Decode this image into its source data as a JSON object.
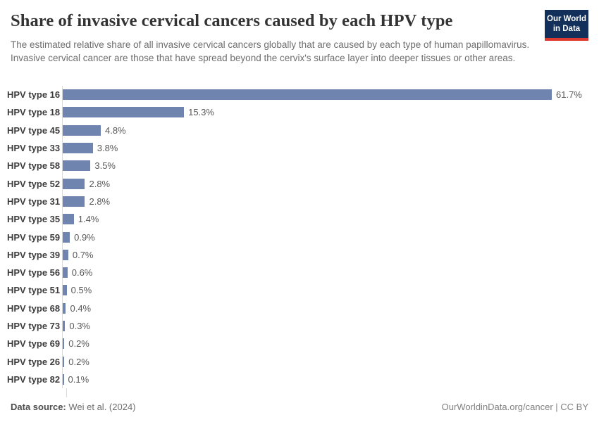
{
  "header": {
    "title": "Share of invasive cervical cancers caused by each HPV type",
    "subtitle": "The estimated relative share of all invasive cervical cancers globally that are caused by each type of human papillomavirus. Invasive cervical cancer are those that have spread beyond the cervix's surface layer into deeper tissues or other areas.",
    "logo": {
      "line1": "Our World",
      "line2": "in Data"
    }
  },
  "chart_data": {
    "type": "bar",
    "orientation": "horizontal",
    "title": "Share of invasive cervical cancers caused by each HPV type",
    "categories": [
      "HPV type 16",
      "HPV type 18",
      "HPV type 45",
      "HPV type 33",
      "HPV type 58",
      "HPV type 52",
      "HPV type 31",
      "HPV type 35",
      "HPV type 59",
      "HPV type 39",
      "HPV type 56",
      "HPV type 51",
      "HPV type 68",
      "HPV type 73",
      "HPV type 69",
      "HPV type 26",
      "HPV type 82"
    ],
    "values": [
      61.7,
      15.3,
      4.8,
      3.8,
      3.5,
      2.8,
      2.8,
      1.4,
      0.9,
      0.7,
      0.6,
      0.5,
      0.4,
      0.3,
      0.2,
      0.2,
      0.1
    ],
    "value_labels": [
      "61.7%",
      "15.3%",
      "4.8%",
      "3.8%",
      "3.5%",
      "2.8%",
      "2.8%",
      "1.4%",
      "0.9%",
      "0.7%",
      "0.6%",
      "0.5%",
      "0.4%",
      "0.3%",
      "0.2%",
      "0.2%",
      "0.1%"
    ],
    "xlabel": "",
    "ylabel": "",
    "xlim": [
      0,
      66
    ],
    "grid": false,
    "legend": "none",
    "bar_color": "#6f85b0"
  },
  "footer": {
    "source_label": "Data source:",
    "source_value": " Wei et al. (2024)",
    "attribution": "OurWorldinData.org/cancer | CC BY"
  },
  "colors": {
    "bar": "#6f85b0",
    "logo_navy": "#12305a",
    "logo_red": "#dc3a2f",
    "axis_line": "#dadada"
  }
}
